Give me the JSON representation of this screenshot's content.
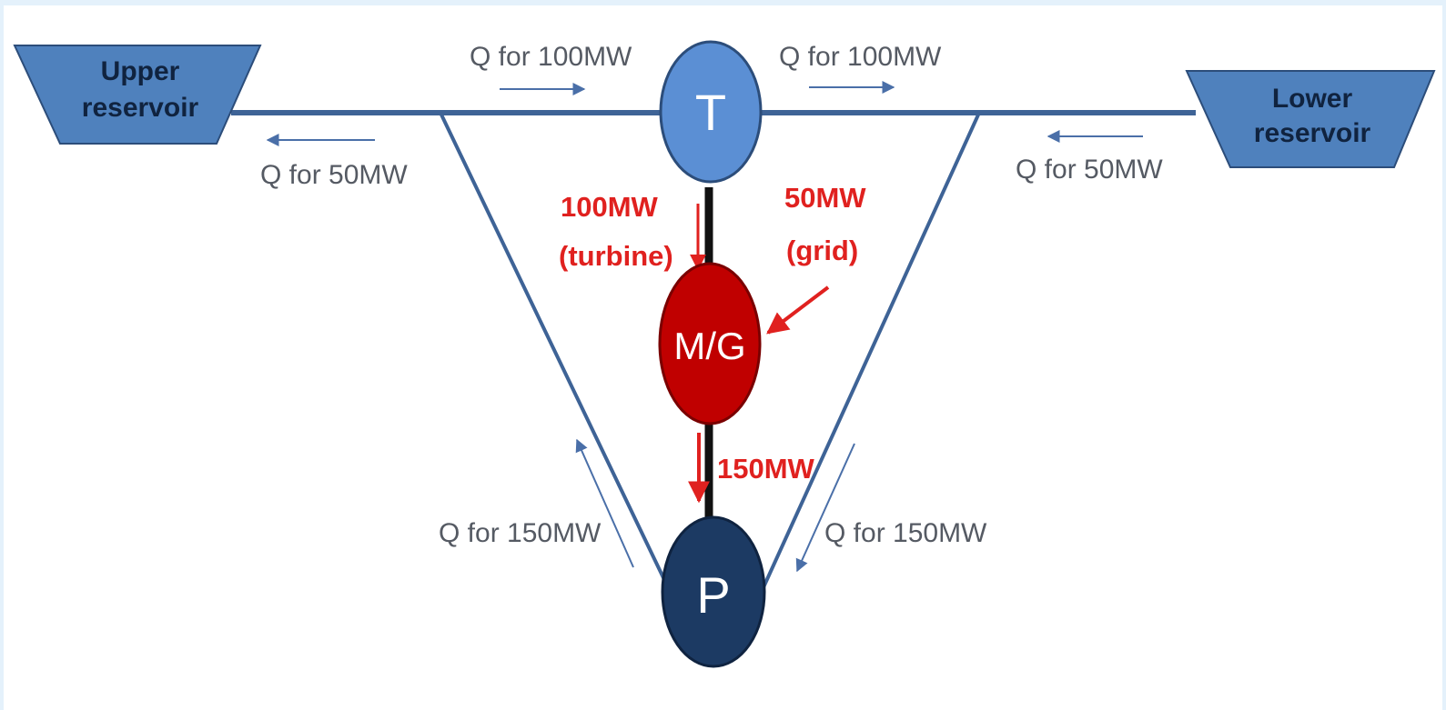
{
  "reservoirs": {
    "upper": [
      "Upper",
      "reservoir"
    ],
    "lower": [
      "Lower",
      "reservoir"
    ]
  },
  "nodes": {
    "turbine": "T",
    "motor_generator": "M/G",
    "pump": "P"
  },
  "flows": {
    "upper_to_turbine": "Q for 100MW",
    "turbine_to_lower": "Q for 100MW",
    "to_upper": "Q for 50MW",
    "from_lower": "Q for 50MW",
    "pump_to_upper": "Q for 150MW",
    "lower_to_pump": "Q for 150MW"
  },
  "power": {
    "turbine_value": "100MW",
    "turbine_source": "(turbine)",
    "grid_value": "50MW",
    "grid_source": "(grid)",
    "pump_value": "150MW"
  },
  "colors": {
    "reservoir_fill": "#4f81bd",
    "pipe": "#3e6396",
    "turbine": "#5b8fd4",
    "motor_generator": "#c00000",
    "pump": "#1c3a63",
    "power_text": "#e0211f",
    "flow_text": "#555a63"
  }
}
